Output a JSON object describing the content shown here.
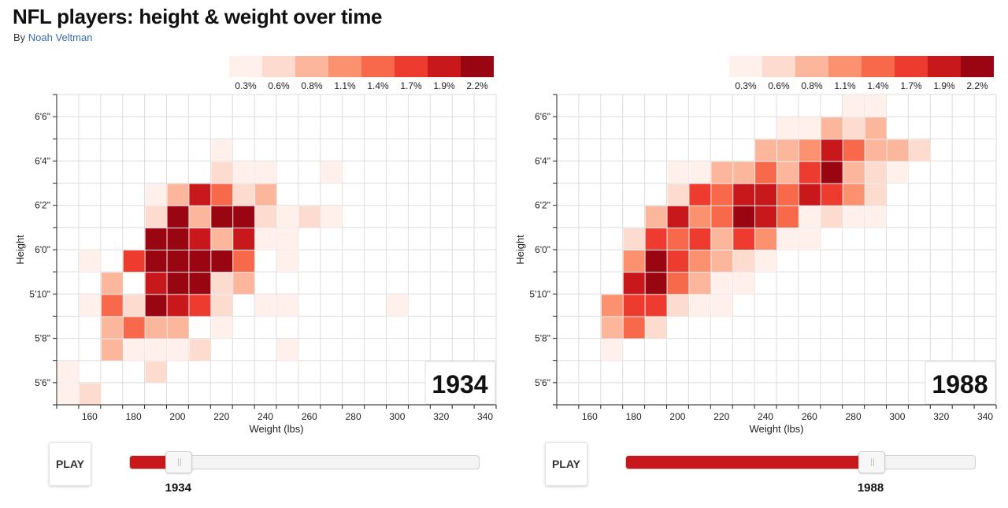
{
  "header": {
    "title": "NFL players: height & weight over time",
    "byline_prefix": "By ",
    "byline_author": "Noah Veltman"
  },
  "controls": {
    "play_label": "PLAY"
  },
  "colors": {
    "scale": [
      "#fff0ec",
      "#fddbce",
      "#fcb69c",
      "#fb916f",
      "#f8694b",
      "#ed3c2f",
      "#c9181c",
      "#990510"
    ],
    "grid": "#dddddd",
    "slider_fill": "#c9181c"
  },
  "chart_data": [
    {
      "type": "heatmap",
      "year": "1934",
      "slider_fraction": 0.14,
      "xlabel": "Weight (lbs)",
      "ylabel": "Height",
      "x_ticks": [
        "160",
        "180",
        "200",
        "220",
        "240",
        "260",
        "280",
        "300",
        "320",
        "340"
      ],
      "y_ticks": [
        "5'6\"",
        "5'8\"",
        "5'10\"",
        "6'0\"",
        "6'2\"",
        "6'4\"",
        "6'6\""
      ],
      "x_range": [
        145,
        345
      ],
      "y_range_inches": [
        65,
        79
      ],
      "bin_size_lbs": 10,
      "bin_size_inches": 1,
      "legend_labels": [
        "0.3%",
        "0.6%",
        "0.8%",
        "1.1%",
        "1.4%",
        "1.7%",
        "1.9%",
        "2.2%"
      ],
      "cells": [
        {
          "weight": 150,
          "height": 65,
          "level": 0
        },
        {
          "weight": 160,
          "height": 65,
          "level": 1
        },
        {
          "weight": 150,
          "height": 66,
          "level": 0
        },
        {
          "weight": 190,
          "height": 66,
          "level": 1
        },
        {
          "weight": 170,
          "height": 67,
          "level": 2
        },
        {
          "weight": 180,
          "height": 67,
          "level": 0
        },
        {
          "weight": 190,
          "height": 67,
          "level": 0
        },
        {
          "weight": 200,
          "height": 67,
          "level": 0
        },
        {
          "weight": 210,
          "height": 67,
          "level": 1
        },
        {
          "weight": 250,
          "height": 67,
          "level": 0
        },
        {
          "weight": 170,
          "height": 68,
          "level": 2
        },
        {
          "weight": 180,
          "height": 68,
          "level": 4
        },
        {
          "weight": 190,
          "height": 68,
          "level": 2
        },
        {
          "weight": 200,
          "height": 68,
          "level": 2
        },
        {
          "weight": 220,
          "height": 68,
          "level": 0
        },
        {
          "weight": 160,
          "height": 69,
          "level": 0
        },
        {
          "weight": 170,
          "height": 69,
          "level": 4
        },
        {
          "weight": 180,
          "height": 69,
          "level": 1
        },
        {
          "weight": 190,
          "height": 69,
          "level": 7
        },
        {
          "weight": 200,
          "height": 69,
          "level": 6
        },
        {
          "weight": 210,
          "height": 69,
          "level": 5
        },
        {
          "weight": 220,
          "height": 69,
          "level": 1
        },
        {
          "weight": 240,
          "height": 69,
          "level": 0
        },
        {
          "weight": 250,
          "height": 69,
          "level": 0
        },
        {
          "weight": 300,
          "height": 69,
          "level": 0
        },
        {
          "weight": 170,
          "height": 70,
          "level": 2
        },
        {
          "weight": 190,
          "height": 70,
          "level": 6
        },
        {
          "weight": 200,
          "height": 70,
          "level": 7
        },
        {
          "weight": 210,
          "height": 70,
          "level": 7
        },
        {
          "weight": 220,
          "height": 70,
          "level": 1
        },
        {
          "weight": 230,
          "height": 70,
          "level": 2
        },
        {
          "weight": 160,
          "height": 71,
          "level": 0
        },
        {
          "weight": 180,
          "height": 71,
          "level": 5
        },
        {
          "weight": 190,
          "height": 71,
          "level": 7
        },
        {
          "weight": 200,
          "height": 71,
          "level": 7
        },
        {
          "weight": 210,
          "height": 71,
          "level": 7
        },
        {
          "weight": 220,
          "height": 71,
          "level": 7
        },
        {
          "weight": 230,
          "height": 71,
          "level": 4
        },
        {
          "weight": 250,
          "height": 71,
          "level": 0
        },
        {
          "weight": 190,
          "height": 72,
          "level": 7
        },
        {
          "weight": 200,
          "height": 72,
          "level": 7
        },
        {
          "weight": 210,
          "height": 72,
          "level": 6
        },
        {
          "weight": 220,
          "height": 72,
          "level": 2
        },
        {
          "weight": 230,
          "height": 72,
          "level": 6
        },
        {
          "weight": 240,
          "height": 72,
          "level": 0
        },
        {
          "weight": 250,
          "height": 72,
          "level": 0
        },
        {
          "weight": 190,
          "height": 73,
          "level": 1
        },
        {
          "weight": 200,
          "height": 73,
          "level": 7
        },
        {
          "weight": 210,
          "height": 73,
          "level": 2
        },
        {
          "weight": 220,
          "height": 73,
          "level": 7
        },
        {
          "weight": 230,
          "height": 73,
          "level": 7
        },
        {
          "weight": 240,
          "height": 73,
          "level": 1
        },
        {
          "weight": 250,
          "height": 73,
          "level": 0
        },
        {
          "weight": 260,
          "height": 73,
          "level": 1
        },
        {
          "weight": 270,
          "height": 73,
          "level": 0
        },
        {
          "weight": 190,
          "height": 74,
          "level": 0
        },
        {
          "weight": 200,
          "height": 74,
          "level": 2
        },
        {
          "weight": 210,
          "height": 74,
          "level": 6
        },
        {
          "weight": 220,
          "height": 74,
          "level": 4
        },
        {
          "weight": 230,
          "height": 74,
          "level": 1
        },
        {
          "weight": 240,
          "height": 74,
          "level": 2
        },
        {
          "weight": 220,
          "height": 75,
          "level": 1
        },
        {
          "weight": 230,
          "height": 75,
          "level": 0
        },
        {
          "weight": 240,
          "height": 75,
          "level": 0
        },
        {
          "weight": 270,
          "height": 75,
          "level": 0
        },
        {
          "weight": 220,
          "height": 76,
          "level": 0
        }
      ]
    },
    {
      "type": "heatmap",
      "year": "1988",
      "slider_fraction": 0.7,
      "xlabel": "Weight (lbs)",
      "ylabel": "Height",
      "x_ticks": [
        "160",
        "180",
        "200",
        "220",
        "240",
        "260",
        "280",
        "300",
        "320",
        "340"
      ],
      "y_ticks": [
        "5'6\"",
        "5'8\"",
        "5'10\"",
        "6'0\"",
        "6'2\"",
        "6'4\"",
        "6'6\""
      ],
      "x_range": [
        145,
        345
      ],
      "y_range_inches": [
        65,
        79
      ],
      "bin_size_lbs": 10,
      "bin_size_inches": 1,
      "legend_labels": [
        "0.3%",
        "0.6%",
        "0.8%",
        "1.1%",
        "1.4%",
        "1.7%",
        "1.9%",
        "2.2%"
      ],
      "cells": [
        {
          "weight": 170,
          "height": 67,
          "level": 0
        },
        {
          "weight": 170,
          "height": 68,
          "level": 2
        },
        {
          "weight": 180,
          "height": 68,
          "level": 4
        },
        {
          "weight": 190,
          "height": 68,
          "level": 1
        },
        {
          "weight": 170,
          "height": 69,
          "level": 3
        },
        {
          "weight": 180,
          "height": 69,
          "level": 5
        },
        {
          "weight": 190,
          "height": 69,
          "level": 5
        },
        {
          "weight": 200,
          "height": 69,
          "level": 1
        },
        {
          "weight": 210,
          "height": 69,
          "level": 0
        },
        {
          "weight": 220,
          "height": 69,
          "level": 0
        },
        {
          "weight": 180,
          "height": 70,
          "level": 6
        },
        {
          "weight": 190,
          "height": 70,
          "level": 7
        },
        {
          "weight": 200,
          "height": 70,
          "level": 4
        },
        {
          "weight": 210,
          "height": 70,
          "level": 2
        },
        {
          "weight": 220,
          "height": 70,
          "level": 0
        },
        {
          "weight": 230,
          "height": 70,
          "level": 0
        },
        {
          "weight": 180,
          "height": 71,
          "level": 3
        },
        {
          "weight": 190,
          "height": 71,
          "level": 7
        },
        {
          "weight": 200,
          "height": 71,
          "level": 5
        },
        {
          "weight": 210,
          "height": 71,
          "level": 3
        },
        {
          "weight": 220,
          "height": 71,
          "level": 2
        },
        {
          "weight": 230,
          "height": 71,
          "level": 1
        },
        {
          "weight": 240,
          "height": 71,
          "level": 0
        },
        {
          "weight": 180,
          "height": 72,
          "level": 1
        },
        {
          "weight": 190,
          "height": 72,
          "level": 5
        },
        {
          "weight": 200,
          "height": 72,
          "level": 4
        },
        {
          "weight": 210,
          "height": 72,
          "level": 5
        },
        {
          "weight": 220,
          "height": 72,
          "level": 2
        },
        {
          "weight": 230,
          "height": 72,
          "level": 5
        },
        {
          "weight": 240,
          "height": 72,
          "level": 3
        },
        {
          "weight": 250,
          "height": 72,
          "level": 0
        },
        {
          "weight": 260,
          "height": 72,
          "level": 0
        },
        {
          "weight": 190,
          "height": 73,
          "level": 2
        },
        {
          "weight": 200,
          "height": 73,
          "level": 6
        },
        {
          "weight": 210,
          "height": 73,
          "level": 3
        },
        {
          "weight": 220,
          "height": 73,
          "level": 4
        },
        {
          "weight": 230,
          "height": 73,
          "level": 7
        },
        {
          "weight": 240,
          "height": 73,
          "level": 6
        },
        {
          "weight": 250,
          "height": 73,
          "level": 4
        },
        {
          "weight": 260,
          "height": 73,
          "level": 0
        },
        {
          "weight": 270,
          "height": 73,
          "level": 1
        },
        {
          "weight": 280,
          "height": 73,
          "level": 0
        },
        {
          "weight": 290,
          "height": 73,
          "level": 0
        },
        {
          "weight": 200,
          "height": 74,
          "level": 1
        },
        {
          "weight": 210,
          "height": 74,
          "level": 5
        },
        {
          "weight": 220,
          "height": 74,
          "level": 4
        },
        {
          "weight": 230,
          "height": 74,
          "level": 6
        },
        {
          "weight": 240,
          "height": 74,
          "level": 6
        },
        {
          "weight": 250,
          "height": 74,
          "level": 4
        },
        {
          "weight": 260,
          "height": 74,
          "level": 6
        },
        {
          "weight": 270,
          "height": 74,
          "level": 5
        },
        {
          "weight": 280,
          "height": 74,
          "level": 3
        },
        {
          "weight": 290,
          "height": 74,
          "level": 1
        },
        {
          "weight": 200,
          "height": 75,
          "level": 0
        },
        {
          "weight": 210,
          "height": 75,
          "level": 0
        },
        {
          "weight": 220,
          "height": 75,
          "level": 2
        },
        {
          "weight": 230,
          "height": 75,
          "level": 2
        },
        {
          "weight": 240,
          "height": 75,
          "level": 4
        },
        {
          "weight": 250,
          "height": 75,
          "level": 2
        },
        {
          "weight": 260,
          "height": 75,
          "level": 5
        },
        {
          "weight": 270,
          "height": 75,
          "level": 7
        },
        {
          "weight": 280,
          "height": 75,
          "level": 2
        },
        {
          "weight": 290,
          "height": 75,
          "level": 1
        },
        {
          "weight": 300,
          "height": 75,
          "level": 0
        },
        {
          "weight": 240,
          "height": 76,
          "level": 2
        },
        {
          "weight": 250,
          "height": 76,
          "level": 2
        },
        {
          "weight": 260,
          "height": 76,
          "level": 3
        },
        {
          "weight": 270,
          "height": 76,
          "level": 6
        },
        {
          "weight": 280,
          "height": 76,
          "level": 4
        },
        {
          "weight": 290,
          "height": 76,
          "level": 2
        },
        {
          "weight": 300,
          "height": 76,
          "level": 2
        },
        {
          "weight": 310,
          "height": 76,
          "level": 1
        },
        {
          "weight": 250,
          "height": 77,
          "level": 0
        },
        {
          "weight": 260,
          "height": 77,
          "level": 0
        },
        {
          "weight": 270,
          "height": 77,
          "level": 2
        },
        {
          "weight": 280,
          "height": 77,
          "level": 1
        },
        {
          "weight": 290,
          "height": 77,
          "level": 2
        },
        {
          "weight": 280,
          "height": 78,
          "level": 0
        },
        {
          "weight": 290,
          "height": 78,
          "level": 0
        }
      ]
    }
  ]
}
